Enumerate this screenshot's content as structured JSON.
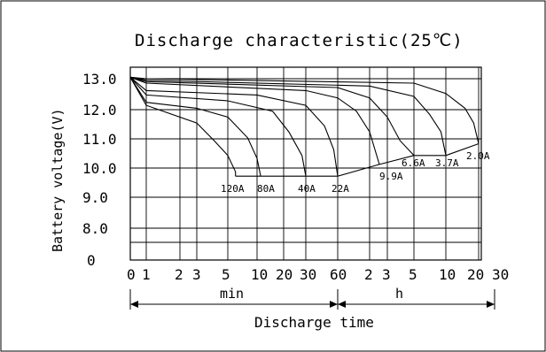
{
  "chart_data": {
    "type": "line",
    "title": "Discharge characteristic(25℃)",
    "ylabel": "Battery voltage(V)",
    "xlabel": "Discharge time",
    "ylim": [
      0,
      13.0
    ],
    "y_ticks": [
      "13.0",
      "12.0",
      "11.0",
      "10.0",
      "9.0",
      "8.0",
      "0"
    ],
    "x_ticks": [
      "0",
      "1",
      "2",
      "3",
      "5",
      "10",
      "20",
      "30",
      "60",
      "2",
      "3",
      "5",
      "10",
      "20",
      "30"
    ],
    "x_units": [
      {
        "label": "min",
        "from": 0,
        "to": 60
      },
      {
        "label": "h",
        "from": 60,
        "to": 30
      }
    ],
    "x_axis_note": "first part in minutes (0–60 min), second part in hours (1–30 h)",
    "series": [
      {
        "name": "120A",
        "points": [
          [
            0,
            13.05
          ],
          [
            1,
            12.1
          ],
          [
            3,
            11.5
          ],
          [
            4,
            10.9
          ],
          [
            5,
            10.4
          ],
          [
            6,
            9.85
          ],
          [
            6,
            9.7
          ]
        ]
      },
      {
        "name": "80A",
        "points": [
          [
            0,
            13.05
          ],
          [
            1,
            12.2
          ],
          [
            3,
            12.0
          ],
          [
            5,
            11.7
          ],
          [
            8,
            11.0
          ],
          [
            10,
            10.3
          ],
          [
            11,
            9.7
          ]
        ]
      },
      {
        "name": "40A",
        "points": [
          [
            0,
            13.05
          ],
          [
            1,
            12.45
          ],
          [
            5,
            12.25
          ],
          [
            15,
            11.9
          ],
          [
            22,
            11.2
          ],
          [
            28,
            10.4
          ],
          [
            30,
            9.7
          ]
        ]
      },
      {
        "name": "22A",
        "points": [
          [
            0,
            13.05
          ],
          [
            1,
            12.6
          ],
          [
            10,
            12.45
          ],
          [
            30,
            12.1
          ],
          [
            45,
            11.4
          ],
          [
            55,
            10.6
          ],
          [
            60,
            9.7
          ]
        ]
      },
      {
        "name": "9.9A",
        "points": [
          [
            0,
            13.05
          ],
          [
            1,
            12.85
          ],
          [
            30,
            12.6
          ],
          [
            60,
            12.35
          ],
          [
            90,
            11.9
          ],
          [
            120,
            11.2
          ],
          [
            150,
            10.1
          ]
        ]
      },
      {
        "name": "6.6A",
        "points": [
          [
            0,
            13.05
          ],
          [
            1,
            12.9
          ],
          [
            60,
            12.7
          ],
          [
            120,
            12.35
          ],
          [
            180,
            11.7
          ],
          [
            230,
            10.9
          ],
          [
            300,
            10.4
          ]
        ]
      },
      {
        "name": "3.7A",
        "points": [
          [
            0,
            13.05
          ],
          [
            1,
            12.95
          ],
          [
            120,
            12.75
          ],
          [
            300,
            12.4
          ],
          [
            420,
            11.8
          ],
          [
            540,
            11.2
          ],
          [
            600,
            10.4
          ]
        ]
      },
      {
        "name": "2.0A",
        "points": [
          [
            0,
            13.05
          ],
          [
            1,
            13.0
          ],
          [
            300,
            12.85
          ],
          [
            600,
            12.5
          ],
          [
            900,
            12.0
          ],
          [
            1080,
            11.5
          ],
          [
            1200,
            10.8
          ]
        ]
      }
    ],
    "cutoff_curve": [
      [
        6,
        9.7
      ],
      [
        60,
        9.7
      ],
      [
        150,
        10.1
      ],
      [
        300,
        10.4
      ],
      [
        600,
        10.4
      ],
      [
        1200,
        10.8
      ]
    ],
    "grid": true,
    "legend": "none (series labels printed next to curve ends)"
  }
}
